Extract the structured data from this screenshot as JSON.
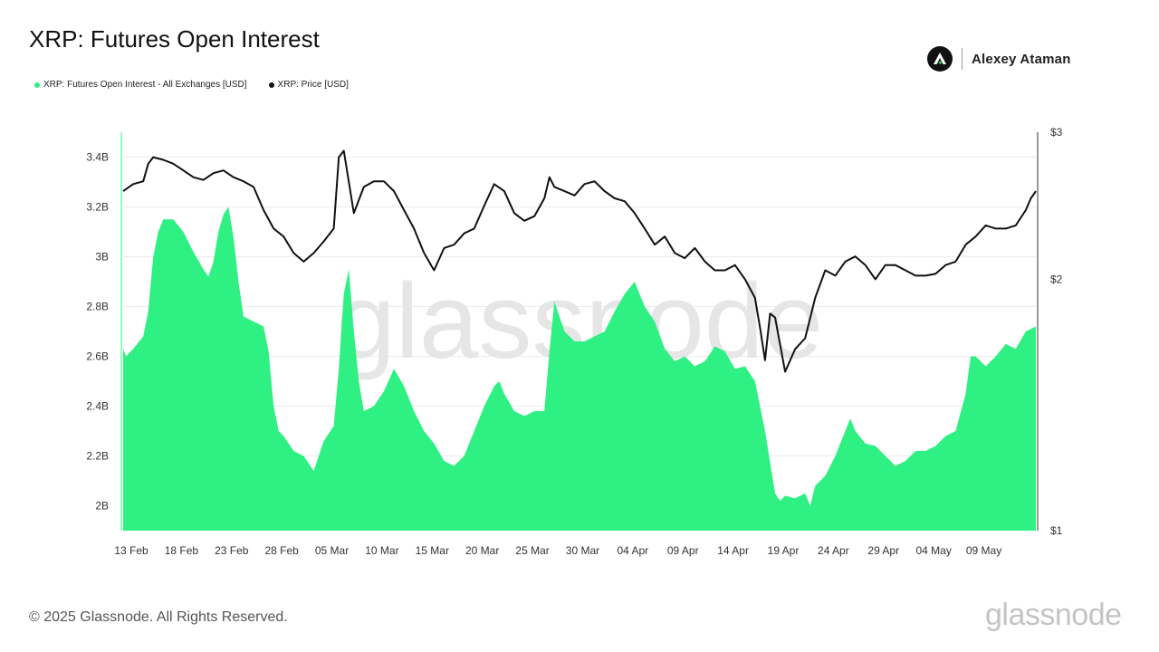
{
  "header": {
    "title": "XRP: Futures Open Interest",
    "author": "Alexey Ataman"
  },
  "footer": {
    "copyright": "© 2025 Glassnode. All Rights Reserved.",
    "logo_text": "glassnode",
    "watermark": "glassnode"
  },
  "colors": {
    "oi_fill": "#2ff083",
    "price_line": "#111111",
    "grid": "#ececec",
    "watermark": "#e6e6e6"
  },
  "chart_data": {
    "type": "area",
    "legend_position": "top-left",
    "grid": true,
    "x_ticks": [
      "13 Feb",
      "18 Feb",
      "23 Feb",
      "28 Feb",
      "05 Mar",
      "10 Mar",
      "15 Mar",
      "20 Mar",
      "25 Mar",
      "30 Mar",
      "04 Apr",
      "09 Apr",
      "14 Apr",
      "19 Apr",
      "24 Apr",
      "29 Apr",
      "04 May",
      "09 May"
    ],
    "y_left": {
      "ticks": [
        "2B",
        "2.2B",
        "2.4B",
        "2.6B",
        "2.8B",
        "3B",
        "3.2B",
        "3.4B"
      ],
      "tick_values": [
        2.0,
        2.2,
        2.4,
        2.6,
        2.8,
        3.0,
        3.2,
        3.4
      ],
      "range": [
        1.9,
        3.5
      ],
      "unit": "USD (billions)"
    },
    "y_right": {
      "ticks": [
        "$1",
        "$2",
        "$3"
      ],
      "tick_values": [
        1,
        2,
        3
      ],
      "scale": "log",
      "range": [
        1,
        3
      ]
    },
    "x_range_days": [
      0,
      91
    ],
    "series": [
      {
        "name": "XRP: Futures Open Interest - All Exchanges [USD]",
        "axis": "left",
        "style": "area",
        "points": [
          [
            0,
            2.63
          ],
          [
            0.3,
            2.6
          ],
          [
            1,
            2.63
          ],
          [
            2,
            2.68
          ],
          [
            2.5,
            2.78
          ],
          [
            3,
            3.0
          ],
          [
            3.5,
            3.1
          ],
          [
            4,
            3.15
          ],
          [
            5,
            3.15
          ],
          [
            6,
            3.1
          ],
          [
            7,
            3.02
          ],
          [
            8,
            2.95
          ],
          [
            8.5,
            2.92
          ],
          [
            9,
            2.98
          ],
          [
            9.5,
            3.1
          ],
          [
            10,
            3.17
          ],
          [
            10.5,
            3.2
          ],
          [
            11,
            3.08
          ],
          [
            11.5,
            2.9
          ],
          [
            12,
            2.76
          ],
          [
            13,
            2.74
          ],
          [
            14,
            2.72
          ],
          [
            14.5,
            2.62
          ],
          [
            15,
            2.4
          ],
          [
            15.5,
            2.3
          ],
          [
            16,
            2.28
          ],
          [
            16.5,
            2.25
          ],
          [
            17,
            2.22
          ],
          [
            18,
            2.2
          ],
          [
            19,
            2.14
          ],
          [
            19.5,
            2.2
          ],
          [
            20,
            2.26
          ],
          [
            21,
            2.32
          ],
          [
            21.5,
            2.55
          ],
          [
            22,
            2.85
          ],
          [
            22.5,
            2.95
          ],
          [
            23,
            2.7
          ],
          [
            23.5,
            2.5
          ],
          [
            24,
            2.38
          ],
          [
            25,
            2.4
          ],
          [
            26,
            2.46
          ],
          [
            27,
            2.55
          ],
          [
            28,
            2.48
          ],
          [
            29,
            2.38
          ],
          [
            30,
            2.3
          ],
          [
            31,
            2.25
          ],
          [
            32,
            2.18
          ],
          [
            33,
            2.16
          ],
          [
            34,
            2.2
          ],
          [
            35,
            2.3
          ],
          [
            36,
            2.4
          ],
          [
            37,
            2.48
          ],
          [
            37.5,
            2.5
          ],
          [
            38,
            2.45
          ],
          [
            39,
            2.38
          ],
          [
            40,
            2.36
          ],
          [
            41,
            2.38
          ],
          [
            42,
            2.38
          ],
          [
            42.5,
            2.62
          ],
          [
            43,
            2.82
          ],
          [
            44,
            2.7
          ],
          [
            45,
            2.66
          ],
          [
            46,
            2.66
          ],
          [
            47,
            2.68
          ],
          [
            48,
            2.7
          ],
          [
            49,
            2.78
          ],
          [
            50,
            2.85
          ],
          [
            51,
            2.9
          ],
          [
            52,
            2.8
          ],
          [
            53,
            2.74
          ],
          [
            54,
            2.63
          ],
          [
            55,
            2.58
          ],
          [
            56,
            2.6
          ],
          [
            57,
            2.56
          ],
          [
            58,
            2.58
          ],
          [
            59,
            2.64
          ],
          [
            60,
            2.62
          ],
          [
            61,
            2.55
          ],
          [
            62,
            2.56
          ],
          [
            63,
            2.5
          ],
          [
            64,
            2.3
          ],
          [
            65,
            2.05
          ],
          [
            65.5,
            2.02
          ],
          [
            66,
            2.04
          ],
          [
            67,
            2.03
          ],
          [
            68,
            2.05
          ],
          [
            68.5,
            2.0
          ],
          [
            69,
            2.08
          ],
          [
            70,
            2.12
          ],
          [
            71,
            2.2
          ],
          [
            72,
            2.3
          ],
          [
            72.5,
            2.35
          ],
          [
            73,
            2.3
          ],
          [
            74,
            2.25
          ],
          [
            75,
            2.24
          ],
          [
            76,
            2.2
          ],
          [
            77,
            2.16
          ],
          [
            78,
            2.18
          ],
          [
            79,
            2.22
          ],
          [
            80,
            2.22
          ],
          [
            81,
            2.24
          ],
          [
            82,
            2.28
          ],
          [
            83,
            2.3
          ],
          [
            84,
            2.45
          ],
          [
            84.5,
            2.6
          ],
          [
            85,
            2.6
          ],
          [
            86,
            2.56
          ],
          [
            87,
            2.6
          ],
          [
            88,
            2.65
          ],
          [
            89,
            2.63
          ],
          [
            90,
            2.7
          ],
          [
            91,
            2.72
          ]
        ]
      },
      {
        "name": "XRP: Price [USD]",
        "axis": "right",
        "style": "line",
        "points": [
          [
            0,
            2.55
          ],
          [
            1,
            2.6
          ],
          [
            2,
            2.62
          ],
          [
            2.5,
            2.75
          ],
          [
            3,
            2.8
          ],
          [
            4,
            2.78
          ],
          [
            5,
            2.75
          ],
          [
            6,
            2.7
          ],
          [
            7,
            2.65
          ],
          [
            8,
            2.63
          ],
          [
            9,
            2.68
          ],
          [
            10,
            2.7
          ],
          [
            11,
            2.65
          ],
          [
            12,
            2.62
          ],
          [
            13,
            2.58
          ],
          [
            14,
            2.42
          ],
          [
            15,
            2.3
          ],
          [
            16,
            2.25
          ],
          [
            17,
            2.15
          ],
          [
            18,
            2.1
          ],
          [
            19,
            2.15
          ],
          [
            20,
            2.22
          ],
          [
            21,
            2.3
          ],
          [
            21.5,
            2.8
          ],
          [
            22,
            2.85
          ],
          [
            23,
            2.4
          ],
          [
            24,
            2.58
          ],
          [
            25,
            2.62
          ],
          [
            26,
            2.62
          ],
          [
            27,
            2.55
          ],
          [
            28,
            2.42
          ],
          [
            29,
            2.3
          ],
          [
            30,
            2.15
          ],
          [
            31,
            2.05
          ],
          [
            32,
            2.18
          ],
          [
            33,
            2.2
          ],
          [
            34,
            2.27
          ],
          [
            35,
            2.3
          ],
          [
            36,
            2.45
          ],
          [
            37,
            2.6
          ],
          [
            38,
            2.55
          ],
          [
            39,
            2.4
          ],
          [
            40,
            2.35
          ],
          [
            41,
            2.38
          ],
          [
            42,
            2.5
          ],
          [
            42.5,
            2.65
          ],
          [
            43,
            2.58
          ],
          [
            44,
            2.55
          ],
          [
            45,
            2.52
          ],
          [
            46,
            2.6
          ],
          [
            47,
            2.62
          ],
          [
            48,
            2.55
          ],
          [
            49,
            2.5
          ],
          [
            50,
            2.48
          ],
          [
            51,
            2.4
          ],
          [
            52,
            2.3
          ],
          [
            53,
            2.2
          ],
          [
            54,
            2.25
          ],
          [
            55,
            2.15
          ],
          [
            56,
            2.12
          ],
          [
            57,
            2.18
          ],
          [
            58,
            2.1
          ],
          [
            59,
            2.05
          ],
          [
            60,
            2.05
          ],
          [
            61,
            2.08
          ],
          [
            62,
            2.0
          ],
          [
            63,
            1.9
          ],
          [
            63.5,
            1.75
          ],
          [
            64,
            1.6
          ],
          [
            64.5,
            1.82
          ],
          [
            65,
            1.8
          ],
          [
            66,
            1.55
          ],
          [
            67,
            1.65
          ],
          [
            68,
            1.7
          ],
          [
            69,
            1.9
          ],
          [
            70,
            2.05
          ],
          [
            71,
            2.02
          ],
          [
            72,
            2.1
          ],
          [
            73,
            2.13
          ],
          [
            74,
            2.08
          ],
          [
            75,
            2.0
          ],
          [
            76,
            2.08
          ],
          [
            77,
            2.08
          ],
          [
            78,
            2.05
          ],
          [
            79,
            2.02
          ],
          [
            80,
            2.02
          ],
          [
            81,
            2.03
          ],
          [
            82,
            2.08
          ],
          [
            83,
            2.1
          ],
          [
            84,
            2.2
          ],
          [
            85,
            2.25
          ],
          [
            86,
            2.32
          ],
          [
            87,
            2.3
          ],
          [
            88,
            2.3
          ],
          [
            89,
            2.32
          ],
          [
            90,
            2.42
          ],
          [
            90.5,
            2.5
          ],
          [
            91,
            2.55
          ]
        ]
      }
    ]
  }
}
